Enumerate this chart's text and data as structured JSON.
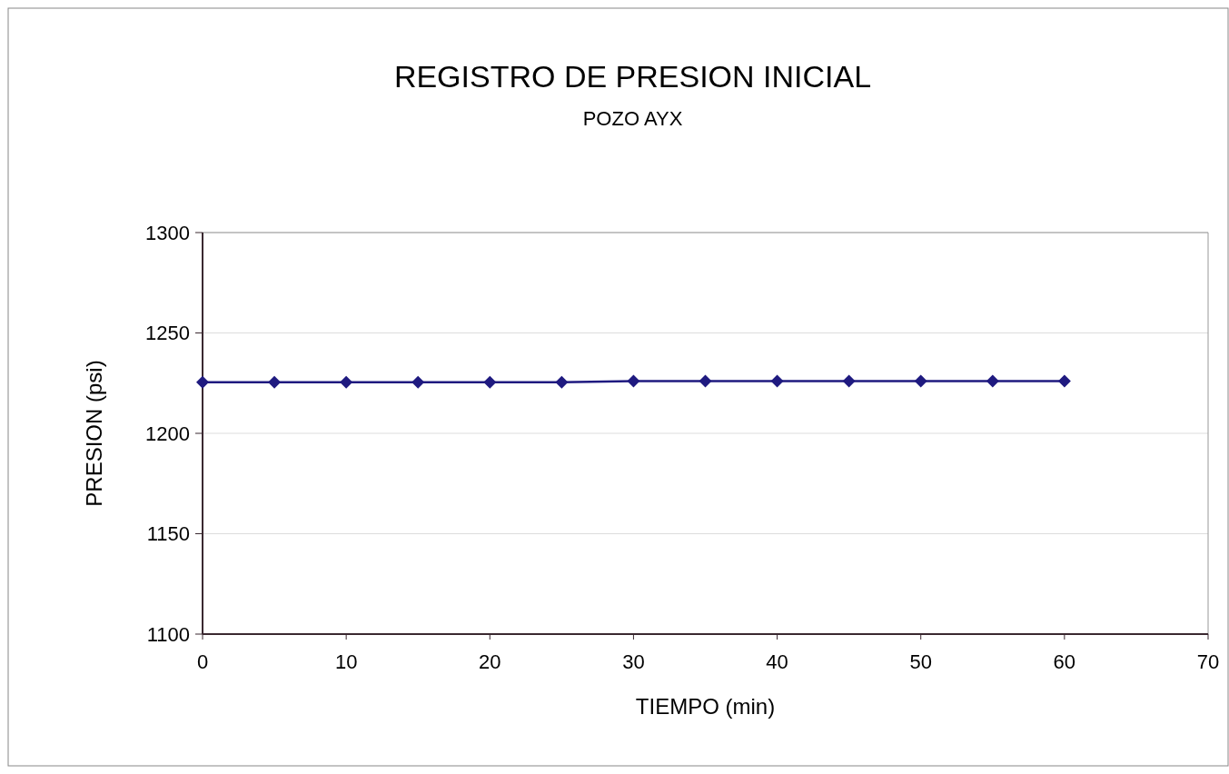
{
  "chart_data": {
    "type": "line",
    "title": "REGISTRO DE PRESION INICIAL",
    "subtitle": "POZO AYX",
    "xlabel": "TIEMPO (min)",
    "ylabel": "PRESION (psi)",
    "x": [
      0,
      5,
      10,
      15,
      20,
      25,
      30,
      35,
      40,
      45,
      50,
      55,
      60
    ],
    "series": [
      {
        "color": "#1f1a80",
        "values": [
          1225.5,
          1225.5,
          1225.5,
          1225.5,
          1225.5,
          1225.5,
          1226,
          1226,
          1226,
          1226,
          1226,
          1226,
          1226
        ]
      }
    ],
    "xlim": [
      0,
      70
    ],
    "xticks": [
      0,
      10,
      20,
      30,
      40,
      50,
      60,
      70
    ],
    "ylim": [
      1100,
      1300
    ],
    "yticks": [
      1100,
      1150,
      1200,
      1250,
      1300
    ],
    "grid": "y",
    "marker": "diamond",
    "line_style": "solid"
  }
}
